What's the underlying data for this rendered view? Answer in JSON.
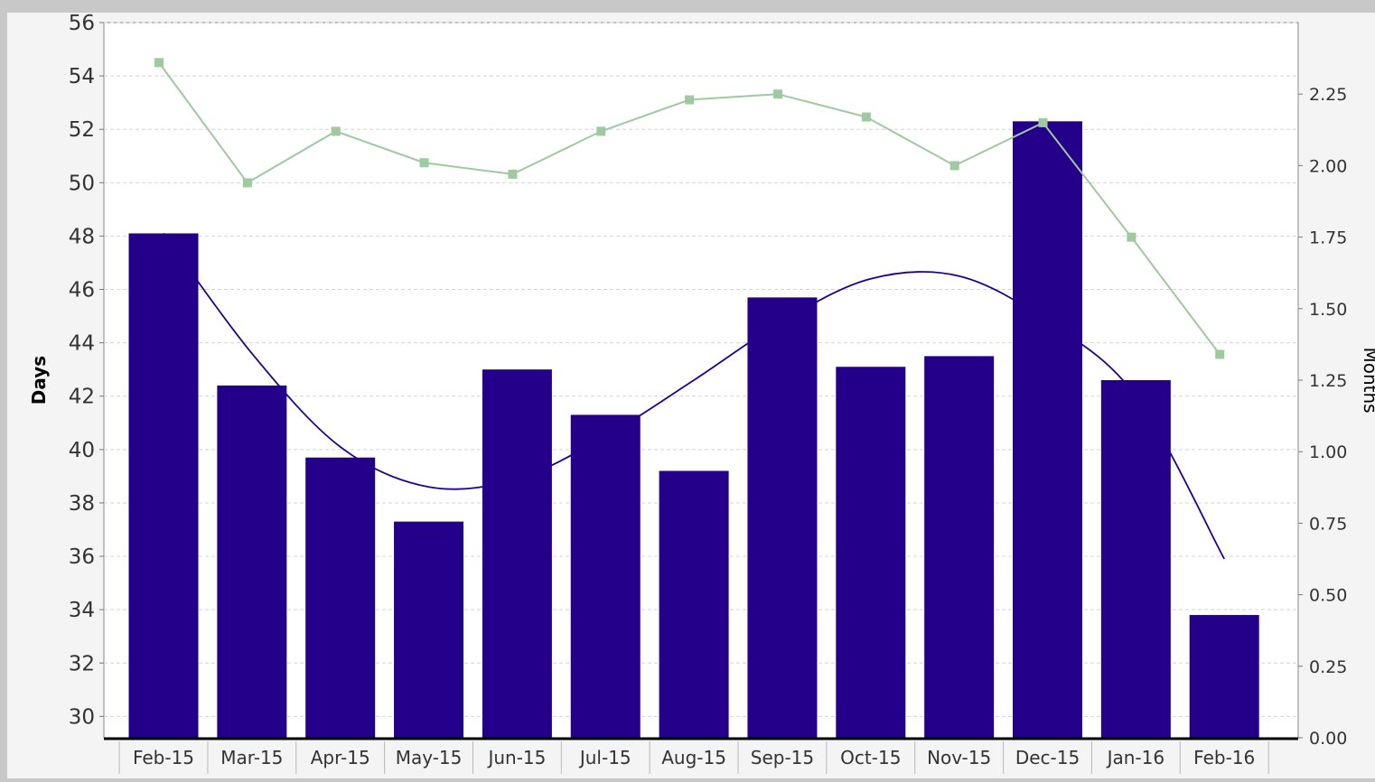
{
  "chart_data": {
    "type": "bar",
    "categories": [
      "Feb-15",
      "Mar-15",
      "Apr-15",
      "May-15",
      "Jun-15",
      "Jul-15",
      "Aug-15",
      "Sep-15",
      "Oct-15",
      "Nov-15",
      "Dec-15",
      "Jan-16",
      "Feb-16"
    ],
    "ylabel": "Days",
    "y2label": "Months",
    "ylim": [
      29.2,
      56
    ],
    "y2lim": [
      0,
      2.5
    ],
    "yticks": [
      "30",
      "32",
      "34",
      "36",
      "38",
      "40",
      "42",
      "44",
      "46",
      "48",
      "50",
      "52",
      "54",
      "56"
    ],
    "y2ticks": [
      "0.00",
      "0.25",
      "0.50",
      "0.75",
      "1.00",
      "1.25",
      "1.50",
      "1.75",
      "2.00",
      "2.25"
    ],
    "grid": true,
    "series": [
      {
        "type": "bar",
        "axis": "left",
        "values": [
          48.1,
          42.4,
          39.7,
          37.3,
          43.0,
          41.3,
          39.2,
          45.7,
          43.1,
          43.5,
          52.3,
          42.6,
          33.8
        ],
        "color": "#24008a"
      },
      {
        "type": "line",
        "axis": "left",
        "smooth": true,
        "values": [
          48.1,
          43.6,
          40.1,
          38.6,
          38.9,
          40.5,
          42.6,
          44.8,
          46.4,
          46.5,
          44.8,
          42.0,
          35.9
        ],
        "color": "#24008a"
      },
      {
        "type": "line",
        "axis": "right",
        "marker": "square",
        "values": [
          2.36,
          1.94,
          2.12,
          2.01,
          1.97,
          2.12,
          2.23,
          2.25,
          2.17,
          2.0,
          2.15,
          1.75,
          1.34
        ],
        "color": "#9fc99f"
      }
    ]
  }
}
